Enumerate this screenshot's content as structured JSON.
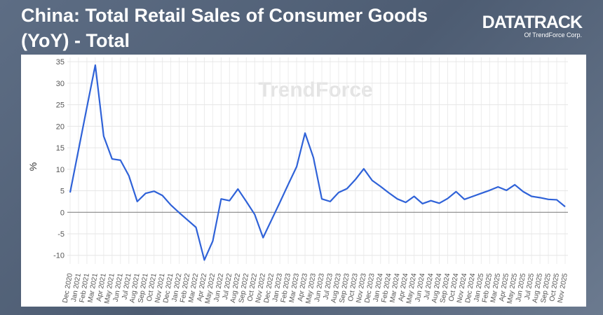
{
  "header": {
    "logo": "DATATRACK",
    "logo_sub": "Of TrendForce Corp."
  },
  "chart_data": {
    "type": "line",
    "title": "China: Total Retail Sales of Consumer Goods (YoY) - Total",
    "watermark": "TrendForce",
    "y_label": "%",
    "categories": [
      "Dec 2020",
      "Jan 2021",
      "Feb 2021",
      "Mar 2021",
      "Apr 2021",
      "May 2021",
      "Jun 2021",
      "Jul 2021",
      "Aug 2021",
      "Sep 2021",
      "Oct 2021",
      "Nov 2021",
      "Dec 2021",
      "Jan 2022",
      "Feb 2022",
      "Mar 2022",
      "Apr 2022",
      "May 2022",
      "Jun 2022",
      "Jul 2022",
      "Aug 2022",
      "Sep 2022",
      "Oct 2022",
      "Nov 2022",
      "Dec 2022",
      "Jan 2023",
      "Feb 2023",
      "Mar 2023",
      "Apr 2023",
      "May 2023",
      "Jun 2023",
      "Jul 2023",
      "Aug 2023",
      "Sep 2023",
      "Oct 2023",
      "Nov 2023",
      "Dec 2023",
      "Jan 2024",
      "Feb 2024",
      "Mar 2024",
      "Apr 2024",
      "May 2024",
      "Jun 2024",
      "Jul 2024",
      "Aug 2024",
      "Sep 2024",
      "Oct 2024",
      "Nov 2024",
      "Dec 2024",
      "Jan 2025",
      "Feb 2025",
      "Mar 2025",
      "Apr 2025",
      "May 2025",
      "Jun 2025",
      "Jul 2025",
      "Aug 2025",
      "Sep 2025",
      "Oct 2025",
      "Nov 2025"
    ],
    "series": [
      {
        "name": "Total",
        "color": "#2f62d8",
        "values": [
          4.6,
          14.5,
          24.4,
          34.2,
          17.7,
          12.4,
          12.1,
          8.5,
          2.5,
          4.4,
          4.9,
          3.9,
          1.7,
          -0.1,
          -1.8,
          -3.5,
          -11.1,
          -6.7,
          3.1,
          2.7,
          5.4,
          2.5,
          -0.5,
          -5.9,
          -1.8,
          2.3,
          6.5,
          10.6,
          18.4,
          12.7,
          3.1,
          2.5,
          4.6,
          5.5,
          7.6,
          10.1,
          7.4,
          6.0,
          4.5,
          3.1,
          2.3,
          3.7,
          2.0,
          2.7,
          2.1,
          3.2,
          4.8,
          3.0,
          3.7,
          4.4,
          5.1,
          5.9,
          5.1,
          6.4,
          4.8,
          3.7,
          3.4,
          3.0,
          2.9,
          1.3
        ]
      }
    ],
    "ylim": [
      -12,
      36
    ],
    "yticks": [
      -10,
      -5,
      0,
      5,
      10,
      15,
      20,
      25,
      30,
      35
    ],
    "grid": true
  }
}
